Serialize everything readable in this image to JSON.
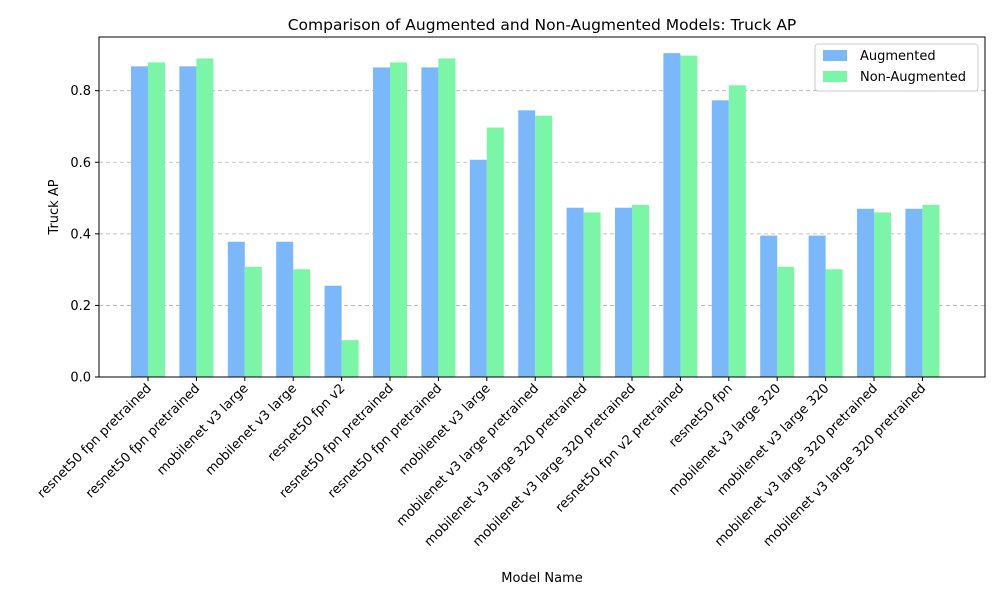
{
  "chart_data": {
    "type": "bar",
    "title": "Comparison of Augmented and Non-Augmented Models: Truck AP",
    "xlabel": "Model Name",
    "ylabel": "Truck AP",
    "ylim": [
      0,
      0.95
    ],
    "yticks": [
      0.0,
      0.2,
      0.4,
      0.6,
      0.8
    ],
    "grid": "y-dashed",
    "legend_position": "top-right",
    "categories": [
      "resnet50 fpn pretrained",
      "resnet50 fpn pretrained",
      "mobilenet v3 large",
      "mobilenet v3 large",
      "resnet50 fpn v2",
      "resnet50 fpn pretrained",
      "resnet50 fpn pretrained",
      "mobilenet v3 large",
      "mobilenet v3 large pretrained",
      "mobilenet v3 large 320 pretrained",
      "mobilenet v3 large 320 pretrained",
      "resnet50 fpn v2 pretrained",
      "resnet50 fpn",
      "mobilenet v3 large 320",
      "mobilenet v3 large 320",
      "mobilenet v3 large 320 pretrained",
      "mobilenet v3 large 320 pretrained"
    ],
    "series": [
      {
        "name": "Augmented",
        "color": "#7ab8fb",
        "values": [
          0.868,
          0.868,
          0.378,
          0.378,
          0.255,
          0.865,
          0.865,
          0.607,
          0.745,
          0.473,
          0.473,
          0.905,
          0.773,
          0.395,
          0.395,
          0.47,
          0.47
        ]
      },
      {
        "name": "Non-Augmented",
        "color": "#7af6a6",
        "values": [
          0.879,
          0.89,
          0.308,
          0.301,
          0.103,
          0.879,
          0.89,
          0.697,
          0.73,
          0.46,
          0.481,
          0.898,
          0.815,
          0.308,
          0.301,
          0.46,
          0.481
        ]
      }
    ]
  }
}
